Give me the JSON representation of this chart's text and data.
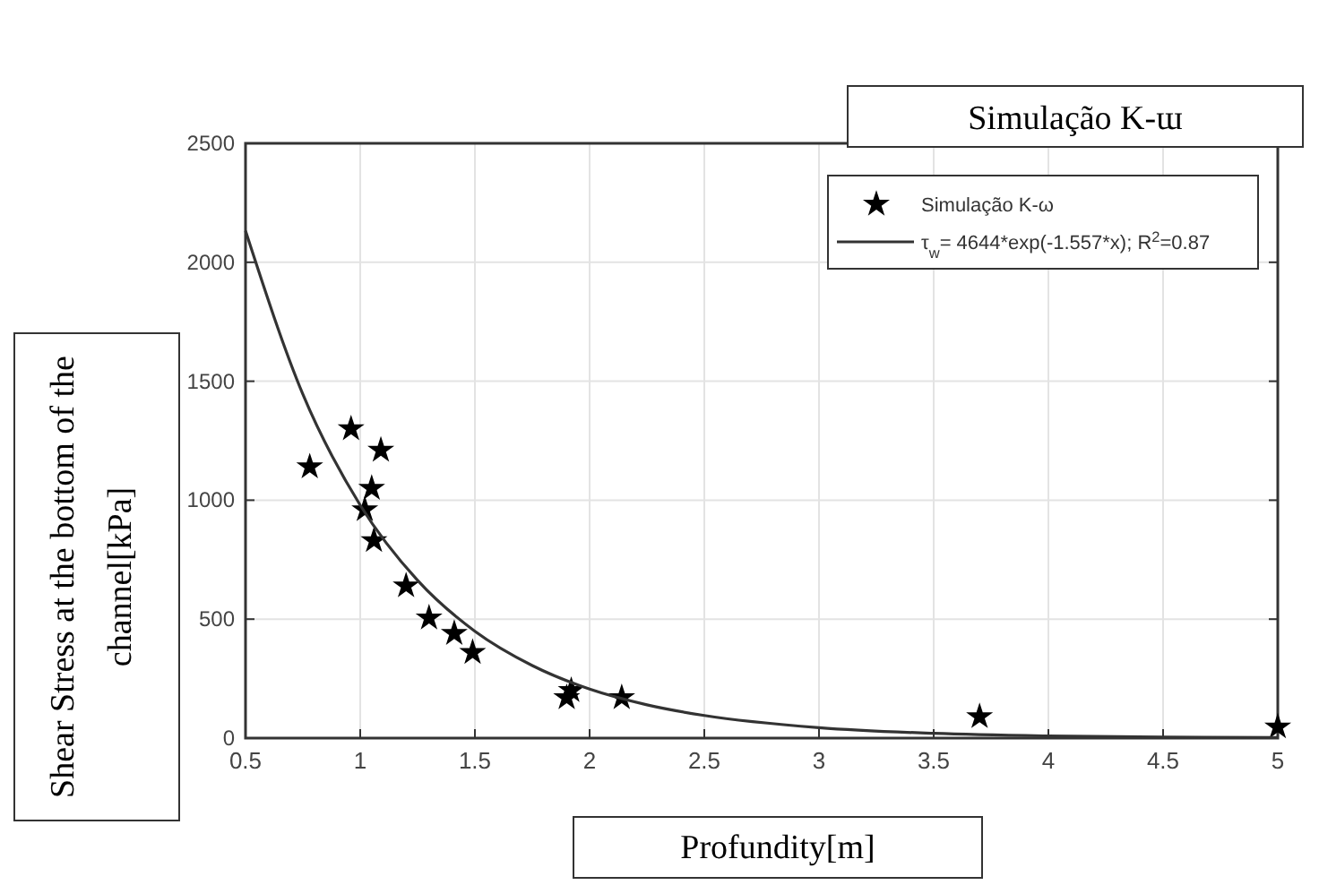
{
  "chart_data": {
    "type": "scatter",
    "xlabel": "Profundity[m]",
    "ylabel": "Shear Stress at the bottom of the channel[kPa]",
    "annotations": [
      "Simulação K-ɯ"
    ],
    "xlim": [
      0.5,
      5
    ],
    "xticks": [
      0.5,
      1,
      1.5,
      2,
      2.5,
      3,
      3.5,
      4,
      4.5,
      5
    ],
    "ylim": [
      0,
      2500
    ],
    "yticks": [
      0,
      500,
      1000,
      1500,
      2000,
      2500
    ],
    "grid": true,
    "legend": "top right",
    "series": [
      {
        "name": "Simulação K-ω",
        "type": "scatter",
        "marker": "star",
        "color": "#000000",
        "x": [
          0.78,
          0.96,
          1.09,
          1.05,
          1.02,
          1.06,
          1.2,
          1.3,
          1.41,
          1.49,
          1.9,
          1.92,
          2.14,
          3.7,
          5.0
        ],
        "values": [
          1140,
          1300,
          1210,
          1050,
          960,
          830,
          640,
          505,
          440,
          360,
          170,
          200,
          170,
          90,
          47
        ]
      },
      {
        "name": "τ$_{w}$= 4644*exp(-1.557*x); R$^{2}$=0.87",
        "type": "line",
        "marker": "none",
        "line_style": "solid",
        "color": "#333333",
        "x": [
          0.5,
          0.75,
          1,
          1.25,
          1.5,
          1.75,
          2,
          2.25,
          2.5,
          3,
          3.5,
          4,
          4.5,
          5
        ],
        "values": [
          2132,
          1445,
          979,
          663,
          449,
          305,
          206,
          140,
          95,
          44,
          20,
          9,
          4,
          2
        ]
      }
    ]
  }
}
